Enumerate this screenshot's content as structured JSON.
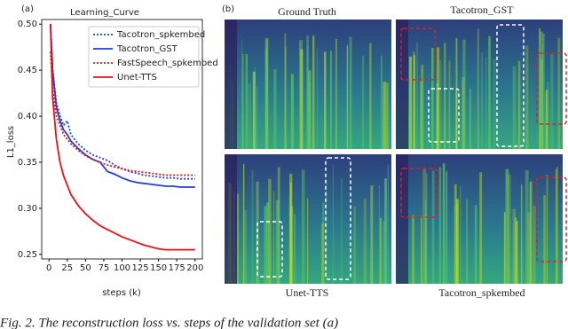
{
  "chart_data": {
    "type": "line",
    "title": "Learning_Curve",
    "x_label": "steps (k)",
    "y_label": "L1_loss",
    "x": [
      2,
      5,
      10,
      15,
      20,
      25,
      30,
      40,
      50,
      60,
      70,
      80,
      90,
      100,
      110,
      120,
      130,
      140,
      150,
      160,
      170,
      180,
      190,
      200
    ],
    "series": [
      {
        "name": "Tacotron_spkembed",
        "color": "#1f3fdd",
        "style": "dotted",
        "values": [
          0.5,
          0.45,
          0.415,
          0.4,
          0.39,
          0.395,
          0.38,
          0.37,
          0.363,
          0.358,
          0.355,
          0.352,
          0.347,
          0.343,
          0.34,
          0.338,
          0.336,
          0.335,
          0.334,
          0.333,
          0.333,
          0.332,
          0.332,
          0.332
        ]
      },
      {
        "name": "Tacotron_GST",
        "color": "#1f3fdd",
        "style": "solid",
        "values": [
          0.5,
          0.45,
          0.41,
          0.395,
          0.385,
          0.38,
          0.373,
          0.365,
          0.358,
          0.353,
          0.35,
          0.34,
          0.337,
          0.333,
          0.33,
          0.328,
          0.327,
          0.326,
          0.325,
          0.324,
          0.324,
          0.323,
          0.323,
          0.323
        ]
      },
      {
        "name": "FastSpeech_spkembed",
        "color": "#ee1111",
        "style": "dotted",
        "values": [
          0.47,
          0.43,
          0.4,
          0.39,
          0.38,
          0.375,
          0.37,
          0.363,
          0.357,
          0.353,
          0.35,
          0.347,
          0.345,
          0.343,
          0.341,
          0.34,
          0.339,
          0.338,
          0.337,
          0.336,
          0.336,
          0.336,
          0.336,
          0.336
        ]
      },
      {
        "name": "Unet-TTS",
        "color": "#ee1111",
        "style": "solid",
        "values": [
          0.5,
          0.42,
          0.375,
          0.35,
          0.335,
          0.325,
          0.315,
          0.303,
          0.294,
          0.287,
          0.281,
          0.277,
          0.273,
          0.269,
          0.266,
          0.263,
          0.26,
          0.258,
          0.256,
          0.255,
          0.255,
          0.255,
          0.255,
          0.255
        ]
      }
    ],
    "xlim": [
      -10,
      210
    ],
    "ylim": [
      0.245,
      0.505
    ],
    "xticks": [
      0,
      25,
      50,
      75,
      100,
      125,
      150,
      175,
      200
    ],
    "yticks": [
      0.25,
      {
        "value": 0.3,
        "label": "0.30"
      },
      0.35,
      {
        "value": 0.4,
        "label": "0.40"
      },
      0.45,
      {
        "value": 0.5,
        "label": "0.50"
      }
    ],
    "legend": "upper right",
    "grid": false
  },
  "panel_labels": [
    "(a)",
    "(b)"
  ],
  "spectrograms": [
    {
      "title": "Ground Truth"
    },
    {
      "title": "Tacotron_GST"
    },
    {
      "title": "Unet-TTS"
    },
    {
      "title": "Tacotron_spkembed"
    }
  ],
  "caption": "Fig. 2. The reconstruction loss vs. steps of the validation set (a)"
}
